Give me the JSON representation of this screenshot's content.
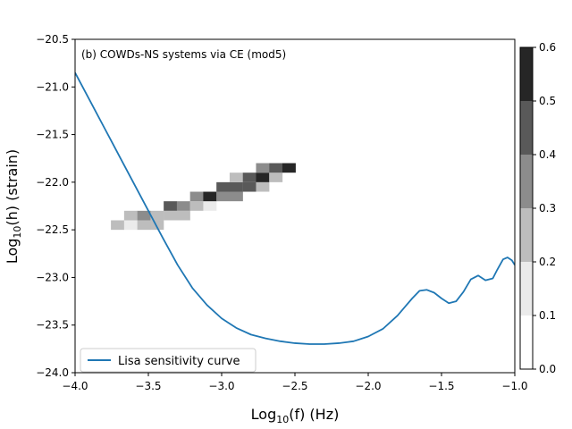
{
  "chart_data": {
    "type": "heatmap",
    "annotation": "(b) COWDs-NS systems via CE (mod5)",
    "xlabel": {
      "prefix": "Log",
      "sub": "10",
      "suffix": "(f) (Hz)"
    },
    "ylabel": {
      "prefix": "Log",
      "sub": "10",
      "suffix": "(h) (strain)"
    },
    "xlim": [
      -4.0,
      -1.0
    ],
    "ylim": [
      -24.0,
      -20.5
    ],
    "xticks": [
      -4.0,
      -3.5,
      -3.0,
      -2.5,
      -2.0,
      -1.5,
      -1.0
    ],
    "xtick_labels": [
      "−4.0",
      "−3.5",
      "−3.0",
      "−2.5",
      "−2.0",
      "−1.5",
      "−1.0"
    ],
    "yticks": [
      -20.5,
      -21.0,
      -21.5,
      -22.0,
      -22.5,
      -23.0,
      -23.5,
      -24.0
    ],
    "ytick_labels": [
      "−20.5",
      "−21.0",
      "−21.5",
      "−22.0",
      "−22.5",
      "−23.0",
      "−23.5",
      "−24.0"
    ],
    "colorbar": {
      "range": [
        0.0,
        0.6
      ],
      "ticks": [
        0.0,
        0.1,
        0.2,
        0.3,
        0.4,
        0.5,
        0.6
      ],
      "tick_labels": [
        "0.0",
        "0.1",
        "0.2",
        "0.3",
        "0.4",
        "0.5",
        "0.6"
      ],
      "levels": [
        "#ffffff",
        "#ebebeb",
        "#bdbdbd",
        "#8c8c8c",
        "#595959",
        "#262626"
      ]
    },
    "heatmap": {
      "x_bin_width": 0.091,
      "y_bin_width": 0.1,
      "cells": [
        {
          "x": -3.71,
          "y": -22.45,
          "v": 0.28
        },
        {
          "x": -3.62,
          "y": -22.45,
          "v": 0.18
        },
        {
          "x": -3.62,
          "y": -22.35,
          "v": 0.22
        },
        {
          "x": -3.53,
          "y": -22.45,
          "v": 0.28
        },
        {
          "x": -3.53,
          "y": -22.35,
          "v": 0.32
        },
        {
          "x": -3.44,
          "y": -22.45,
          "v": 0.28
        },
        {
          "x": -3.44,
          "y": -22.35,
          "v": 0.28
        },
        {
          "x": -3.35,
          "y": -22.35,
          "v": 0.22
        },
        {
          "x": -3.35,
          "y": -22.25,
          "v": 0.48
        },
        {
          "x": -3.26,
          "y": -22.35,
          "v": 0.22
        },
        {
          "x": -3.26,
          "y": -22.25,
          "v": 0.38
        },
        {
          "x": -3.17,
          "y": -22.25,
          "v": 0.22
        },
        {
          "x": -3.17,
          "y": -22.15,
          "v": 0.32
        },
        {
          "x": -3.08,
          "y": -22.25,
          "v": 0.18
        },
        {
          "x": -3.08,
          "y": -22.15,
          "v": 0.52
        },
        {
          "x": -2.99,
          "y": -22.15,
          "v": 0.38
        },
        {
          "x": -2.99,
          "y": -22.05,
          "v": 0.48
        },
        {
          "x": -2.9,
          "y": -22.15,
          "v": 0.32
        },
        {
          "x": -2.9,
          "y": -22.05,
          "v": 0.48
        },
        {
          "x": -2.9,
          "y": -21.95,
          "v": 0.22
        },
        {
          "x": -2.81,
          "y": -22.05,
          "v": 0.48
        },
        {
          "x": -2.81,
          "y": -21.95,
          "v": 0.42
        },
        {
          "x": -2.72,
          "y": -22.05,
          "v": 0.22
        },
        {
          "x": -2.72,
          "y": -21.95,
          "v": 0.55
        },
        {
          "x": -2.72,
          "y": -21.85,
          "v": 0.32
        },
        {
          "x": -2.63,
          "y": -21.95,
          "v": 0.22
        },
        {
          "x": -2.63,
          "y": -21.85,
          "v": 0.48
        },
        {
          "x": -2.54,
          "y": -21.85,
          "v": 0.55
        }
      ]
    },
    "series": [
      {
        "name": "Lisa sensitivity curve",
        "color": "#1f77b4",
        "x": [
          -4.0,
          -3.9,
          -3.8,
          -3.7,
          -3.6,
          -3.5,
          -3.4,
          -3.3,
          -3.2,
          -3.1,
          -3.0,
          -2.9,
          -2.8,
          -2.7,
          -2.6,
          -2.5,
          -2.4,
          -2.3,
          -2.2,
          -2.1,
          -2.0,
          -1.9,
          -1.8,
          -1.75,
          -1.7,
          -1.65,
          -1.6,
          -1.55,
          -1.5,
          -1.45,
          -1.4,
          -1.35,
          -1.3,
          -1.25,
          -1.2,
          -1.15,
          -1.12,
          -1.08,
          -1.05,
          -1.02,
          -1.0
        ],
        "y": [
          -20.85,
          -21.14,
          -21.43,
          -21.72,
          -22.01,
          -22.3,
          -22.59,
          -22.87,
          -23.11,
          -23.29,
          -23.43,
          -23.53,
          -23.6,
          -23.64,
          -23.67,
          -23.69,
          -23.7,
          -23.7,
          -23.69,
          -23.67,
          -23.62,
          -23.54,
          -23.4,
          -23.31,
          -23.22,
          -23.14,
          -23.13,
          -23.16,
          -23.22,
          -23.27,
          -23.25,
          -23.15,
          -23.02,
          -22.98,
          -23.03,
          -23.01,
          -22.92,
          -22.81,
          -22.79,
          -22.82,
          -22.87
        ]
      }
    ],
    "legend": {
      "location": "lower-left",
      "entries": [
        "Lisa sensitivity curve"
      ]
    }
  }
}
